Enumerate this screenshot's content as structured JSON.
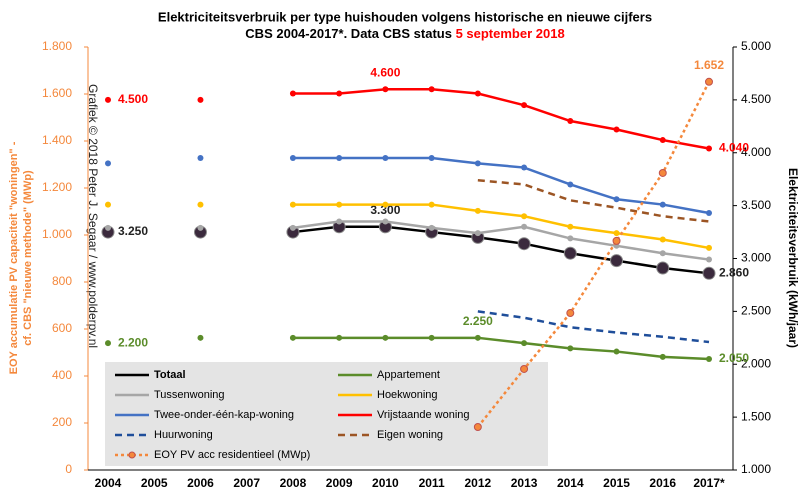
{
  "chart_data": {
    "type": "line",
    "title": "Elektriciteitsverbruik per type huishouden volgens historische en nieuwe cijfers",
    "subtitle": "CBS 2004-2017*. Data CBS status ",
    "subtitle_date": "5 september 2018",
    "watermark": "Grafiek © 2018 Peter J. Segaar / www.polderpv.nl",
    "ylabel": [
      "EOY accumulatie PV capaciteit \"woningen\" -",
      "cf. CBS \"nieuwe methode\" (MWp)"
    ],
    "y2label": "Elektriciteitsverbruik (kWh/jaar)",
    "categories": [
      "2004",
      "2005",
      "2006",
      "2007",
      "2008",
      "2009",
      "2010",
      "2011",
      "2012",
      "2013",
      "2014",
      "2015",
      "2016",
      "2017*"
    ],
    "ylim": [
      0,
      1800
    ],
    "yticks": [
      0,
      200,
      400,
      600,
      800,
      {
        "value": 1000,
        "label": "1.000"
      },
      {
        "value": 1200,
        "label": "1.200"
      },
      {
        "value": 1400,
        "label": "1.400"
      },
      {
        "value": 1600,
        "label": "1.600"
      },
      {
        "value": 1800,
        "label": "1.800"
      }
    ],
    "y2lim": [
      1000,
      5000
    ],
    "y2ticks": [
      {
        "value": 1000,
        "label": "1.000"
      },
      {
        "value": 1500,
        "label": "1.500"
      },
      {
        "value": 2000,
        "label": "2.000"
      },
      {
        "value": 2500,
        "label": "2.500"
      },
      {
        "value": 3000,
        "label": "3.000"
      },
      {
        "value": 3500,
        "label": "3.500"
      },
      {
        "value": 4000,
        "label": "4.000"
      },
      {
        "value": 4500,
        "label": "4.500"
      },
      {
        "value": 5000,
        "label": "5.000"
      }
    ],
    "series": [
      {
        "name": "Totaal",
        "color": "#000000",
        "marker_color": "#3b2a3d",
        "axis": "y2",
        "style": "solid",
        "marker": true,
        "values": [
          3250,
          null,
          3250,
          null,
          3250,
          3300,
          3300,
          3250,
          3200,
          3140,
          3050,
          2980,
          2910,
          2860
        ],
        "value_labels": [
          "3.250",
          null,
          null,
          null,
          null,
          null,
          "3.300",
          null,
          null,
          null,
          null,
          null,
          null,
          "2.860"
        ]
      },
      {
        "name": "Appartement",
        "color": "#5b8c2a",
        "axis": "y2",
        "style": "solid",
        "marker": true,
        "values": [
          2200,
          null,
          2250,
          null,
          2250,
          2250,
          2250,
          2250,
          2250,
          2200,
          2150,
          2120,
          2070,
          2050
        ],
        "value_labels": [
          "2.200",
          null,
          null,
          null,
          null,
          null,
          null,
          null,
          "2.250",
          null,
          null,
          null,
          null,
          "2.050"
        ]
      },
      {
        "name": "Tussenwoning",
        "color": "#a6a6a6",
        "axis": "y2",
        "style": "solid",
        "marker": true,
        "values": [
          3290,
          null,
          3290,
          null,
          3290,
          3350,
          3350,
          3290,
          3240,
          3300,
          3190,
          3120,
          3050,
          2990
        ]
      },
      {
        "name": "Hoekwoning",
        "color": "#ffc000",
        "axis": "y2",
        "style": "solid",
        "marker": true,
        "values": [
          3510,
          null,
          3510,
          null,
          3510,
          3510,
          3510,
          3510,
          3450,
          3400,
          3300,
          3240,
          3180,
          3100
        ]
      },
      {
        "name": "Twee-onder-één-kap-woning",
        "color": "#4472c4",
        "axis": "y2",
        "style": "solid",
        "marker": true,
        "values": [
          3900,
          null,
          3950,
          null,
          3950,
          3950,
          3950,
          3950,
          3900,
          3860,
          3700,
          3560,
          3510,
          3430
        ]
      },
      {
        "name": "Vrijstaande woning",
        "color": "#ff0000",
        "axis": "y2",
        "style": "solid",
        "marker": true,
        "values": [
          4500,
          null,
          4500,
          null,
          4560,
          4560,
          4600,
          4600,
          4560,
          4450,
          4300,
          4220,
          4120,
          4040
        ],
        "value_labels": [
          "4.500",
          null,
          null,
          null,
          null,
          null,
          "4.600",
          null,
          null,
          null,
          null,
          null,
          null,
          "4.040"
        ]
      },
      {
        "name": "Huurwoning",
        "color": "#1f4e9a",
        "axis": "y2",
        "style": "dashed",
        "marker": false,
        "values": [
          null,
          null,
          null,
          null,
          null,
          null,
          null,
          null,
          2500,
          2440,
          2350,
          2300,
          2260,
          2210
        ]
      },
      {
        "name": "Eigen woning",
        "color": "#9c5524",
        "axis": "y2",
        "style": "dashed",
        "marker": false,
        "values": [
          null,
          null,
          null,
          null,
          null,
          null,
          null,
          null,
          3740,
          3700,
          3550,
          3480,
          3400,
          3350
        ]
      },
      {
        "name": "EOY PV acc residentieel (MWp)",
        "color": "#f4883c",
        "axis": "y",
        "style": "dotted",
        "marker": true,
        "values": [
          null,
          null,
          null,
          null,
          null,
          null,
          null,
          null,
          183,
          430,
          668,
          975,
          1264,
          1652
        ],
        "value_labels": [
          null,
          null,
          null,
          null,
          null,
          null,
          null,
          null,
          null,
          null,
          null,
          null,
          null,
          "1.652"
        ]
      }
    ]
  }
}
